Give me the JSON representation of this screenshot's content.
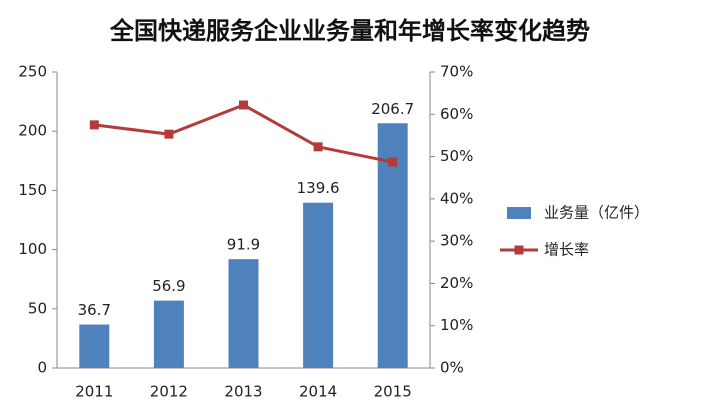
{
  "chart_data": {
    "type": "bar",
    "title": "全国快递服务企业业务量和年增长率变化趋势",
    "categories": [
      "2011",
      "2012",
      "2013",
      "2014",
      "2015"
    ],
    "series": [
      {
        "name": "业务量（亿件）",
        "type": "bar",
        "color": "#4f81bd",
        "values": [
          36.7,
          56.9,
          91.9,
          139.6,
          206.7
        ]
      },
      {
        "name": "增长率",
        "type": "line",
        "axis": "y2",
        "color": "#b53b3b",
        "values": [
          57.5,
          55.3,
          62.2,
          52.3,
          48.7
        ]
      }
    ],
    "ylim": [
      0,
      250
    ],
    "yticks": [
      0,
      50,
      100,
      150,
      200,
      250
    ],
    "y2lim": [
      0,
      70
    ],
    "y2ticks": [
      {
        "value": 0,
        "label": "0%"
      },
      {
        "value": 10,
        "label": "10%"
      },
      {
        "value": 20,
        "label": "20%"
      },
      {
        "value": 30,
        "label": "30%"
      },
      {
        "value": 40,
        "label": "40%"
      },
      {
        "value": 50,
        "label": "50%"
      },
      {
        "value": 60,
        "label": "60%"
      },
      {
        "value": 70,
        "label": "70%"
      }
    ],
    "grid": false,
    "legend": "right"
  }
}
